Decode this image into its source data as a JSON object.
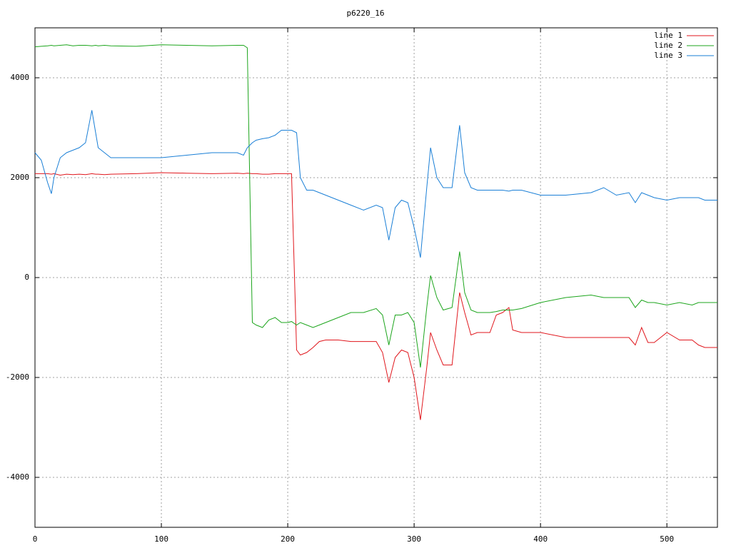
{
  "chart_data": {
    "type": "line",
    "title": "p6220_16",
    "x": [
      0,
      5,
      10,
      13,
      15,
      20,
      25,
      30,
      35,
      40,
      45,
      48,
      50,
      55,
      60,
      80,
      100,
      120,
      140,
      160,
      165,
      168,
      172,
      175,
      180,
      185,
      190,
      195,
      200,
      203,
      207,
      210,
      215,
      220,
      225,
      230,
      240,
      250,
      260,
      270,
      275,
      280,
      285,
      290,
      295,
      300,
      305,
      310,
      313,
      318,
      323,
      330,
      336,
      340,
      345,
      350,
      360,
      365,
      370,
      375,
      378,
      385,
      400,
      420,
      440,
      450,
      460,
      470,
      475,
      480,
      485,
      490,
      500,
      510,
      520,
      525,
      530,
      540
    ],
    "series": [
      {
        "name": "line 1",
        "color": "#e0161c",
        "values": [
          2080,
          2080,
          2080,
          2070,
          2080,
          2050,
          2070,
          2060,
          2070,
          2060,
          2080,
          2070,
          2070,
          2060,
          2070,
          2080,
          2100,
          2090,
          2080,
          2090,
          2080,
          2090,
          2080,
          2080,
          2070,
          2070,
          2080,
          2080,
          2080,
          2080,
          -1450,
          -1550,
          -1500,
          -1400,
          -1280,
          -1250,
          -1250,
          -1280,
          -1280,
          -1280,
          -1500,
          -2100,
          -1600,
          -1450,
          -1500,
          -2000,
          -2850,
          -1800,
          -1100,
          -1450,
          -1750,
          -1750,
          -300,
          -700,
          -1150,
          -1100,
          -1100,
          -750,
          -700,
          -600,
          -1050,
          -1100,
          -1100,
          -1200,
          -1200,
          -1200,
          -1200,
          -1200,
          -1350,
          -1000,
          -1300,
          -1300,
          -1100,
          -1250,
          -1250,
          -1350,
          -1400,
          -1400
        ]
      },
      {
        "name": "line 2",
        "color": "#1ca51c",
        "values": [
          4620,
          4630,
          4640,
          4650,
          4640,
          4650,
          4660,
          4640,
          4650,
          4650,
          4640,
          4650,
          4640,
          4650,
          4640,
          4630,
          4660,
          4650,
          4640,
          4650,
          4650,
          4600,
          -900,
          -950,
          -1000,
          -850,
          -800,
          -900,
          -900,
          -880,
          -950,
          -900,
          -950,
          -1000,
          -950,
          -900,
          -800,
          -700,
          -700,
          -620,
          -750,
          -1350,
          -750,
          -750,
          -700,
          -900,
          -1800,
          -600,
          40,
          -400,
          -650,
          -600,
          520,
          -300,
          -650,
          -700,
          -700,
          -680,
          -650,
          -650,
          -650,
          -620,
          -500,
          -400,
          -350,
          -400,
          -400,
          -400,
          -600,
          -450,
          -500,
          -500,
          -550,
          -500,
          -550,
          -500,
          -500,
          -500
        ]
      },
      {
        "name": "line 3",
        "color": "#1a7fd6",
        "values": [
          2500,
          2350,
          1900,
          1680,
          2000,
          2400,
          2500,
          2550,
          2600,
          2700,
          3350,
          2900,
          2600,
          2500,
          2400,
          2400,
          2400,
          2450,
          2500,
          2500,
          2450,
          2600,
          2700,
          2750,
          2780,
          2800,
          2850,
          2950,
          2950,
          2950,
          2900,
          2000,
          1750,
          1750,
          1700,
          1650,
          1550,
          1450,
          1350,
          1450,
          1400,
          750,
          1400,
          1550,
          1500,
          1000,
          400,
          1800,
          2600,
          2000,
          1800,
          1800,
          3050,
          2100,
          1800,
          1750,
          1750,
          1750,
          1750,
          1730,
          1750,
          1750,
          1650,
          1650,
          1700,
          1800,
          1650,
          1700,
          1500,
          1700,
          1650,
          1600,
          1550,
          1600,
          1600,
          1600,
          1550,
          1550
        ]
      }
    ],
    "xlim": [
      0,
      540
    ],
    "xticks": [
      0,
      100,
      200,
      300,
      400,
      500
    ],
    "ylim": [
      -5000,
      5000
    ],
    "yticks": [
      -4000,
      -2000,
      0,
      2000,
      4000
    ],
    "grid": true,
    "legend": "top-right"
  }
}
